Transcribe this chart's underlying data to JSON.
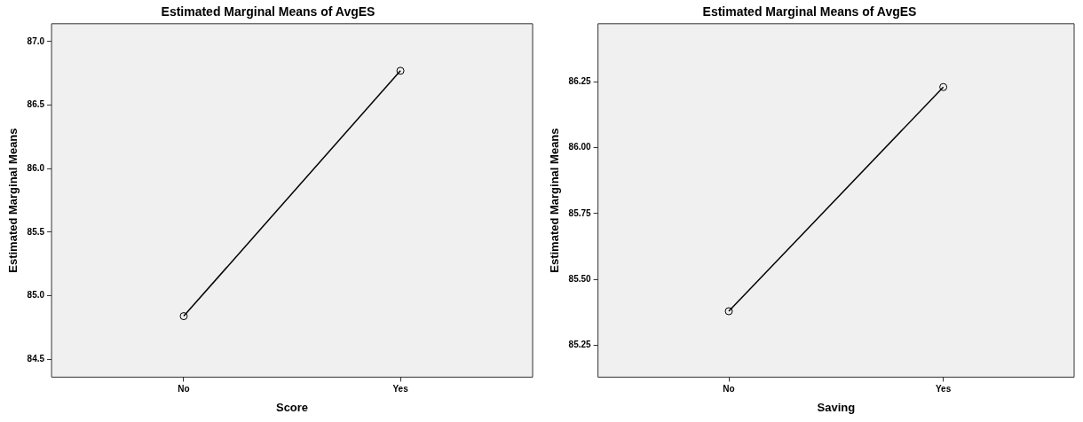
{
  "chart_data": [
    {
      "type": "line",
      "title": "Estimated Marginal Means of AvgES",
      "xlabel": "Score",
      "ylabel": "Estimated Marginal Means",
      "categories": [
        "No",
        "Yes"
      ],
      "series": [
        {
          "color": "#000000",
          "values": [
            84.84,
            86.77
          ]
        }
      ],
      "ylim": [
        84.36,
        87.14
      ],
      "yticks": [
        {
          "value": 84.5,
          "label": "84.5"
        },
        {
          "value": 85,
          "label": "85.0"
        },
        {
          "value": 85.5,
          "label": "85.5"
        },
        {
          "value": 86,
          "label": "86.0"
        },
        {
          "value": 86.5,
          "label": "86.5"
        },
        {
          "value": 87,
          "label": "87.0"
        }
      ],
      "marker": "circle",
      "grid": false,
      "legend": false
    },
    {
      "type": "line",
      "title": "Estimated Marginal Means of AvgES",
      "xlabel": "Saving",
      "ylabel": "Estimated Marginal Means",
      "categories": [
        "No",
        "Yes"
      ],
      "series": [
        {
          "color": "#000000",
          "values": [
            85.38,
            86.23
          ]
        }
      ],
      "ylim": [
        85.13,
        86.47
      ],
      "yticks": [
        85.25,
        {
          "value": 85.5,
          "label": "85.50"
        },
        85.75,
        {
          "value": 86,
          "label": "86.00"
        },
        86.25
      ],
      "marker": "circle",
      "grid": false,
      "legend": false
    }
  ]
}
